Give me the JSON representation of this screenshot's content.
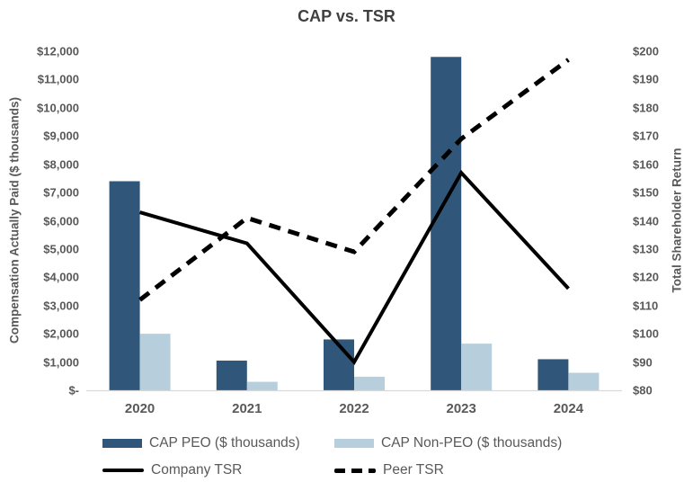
{
  "chart_data": {
    "type": "combo-bar-line",
    "title": "CAP vs. TSR",
    "categories": [
      "2020",
      "2021",
      "2022",
      "2023",
      "2024"
    ],
    "bar_series": [
      {
        "name": "CAP PEO ($ thousands)",
        "axis": "left",
        "color": "#305779",
        "values": [
          7400,
          1050,
          1800,
          11800,
          1100
        ]
      },
      {
        "name": "CAP Non-PEO ($ thousands)",
        "axis": "left",
        "color": "#B7CEDC",
        "values": [
          2000,
          300,
          480,
          1650,
          620
        ]
      }
    ],
    "line_series": [
      {
        "name": "Company TSR",
        "axis": "right",
        "style": "solid",
        "color": "#000000",
        "values": [
          143,
          132,
          90,
          157,
          116
        ]
      },
      {
        "name": "Peer TSR",
        "axis": "right",
        "style": "dashed",
        "color": "#000000",
        "values": [
          112,
          141,
          129,
          169,
          197
        ]
      }
    ],
    "left_axis": {
      "title": "Compensation Actually Paid ($ thousands)",
      "min": 0,
      "max": 12000,
      "ticks": [
        "$12,000",
        "$11,000",
        "$10,000",
        "$9,000",
        "$8,000",
        "$7,000",
        "$6,000",
        "$5,000",
        "$4,000",
        "$3,000",
        "$2,000",
        "$1,000",
        "$-"
      ]
    },
    "right_axis": {
      "title": "Total Shareholder Return",
      "min": 80,
      "max": 200,
      "ticks": [
        "$200",
        "$190",
        "$180",
        "$170",
        "$160",
        "$150",
        "$140",
        "$130",
        "$120",
        "$110",
        "$100",
        "$90",
        "$80"
      ]
    },
    "grid": false,
    "legend_position": "bottom",
    "axis_line_color": "#D9D9D9",
    "text_color": "#595959",
    "title_color": "#404040"
  },
  "legend": {
    "items": [
      {
        "label": "CAP PEO ($ thousands)",
        "swatch": "bar-dark"
      },
      {
        "label": "CAP Non-PEO ($ thousands)",
        "swatch": "bar-light"
      },
      {
        "label": "Company TSR",
        "swatch": "line-solid"
      },
      {
        "label": "Peer TSR",
        "swatch": "line-dashed"
      }
    ]
  }
}
